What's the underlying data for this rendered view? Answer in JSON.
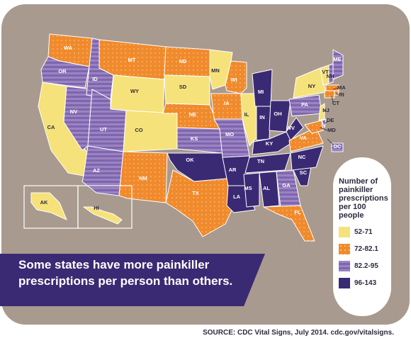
{
  "banner": {
    "line1": "Some states have more painkiller",
    "line2": "prescriptions per person than others."
  },
  "legend": {
    "title_lines": [
      "Number of",
      "painkiller",
      "prescriptions",
      "per 100 people"
    ],
    "items": [
      {
        "label": "52-71",
        "color": "#f6e27a",
        "pattern": "solid"
      },
      {
        "label": "72-82.1",
        "color": "#f08a2c",
        "pattern": "dots"
      },
      {
        "label": "82.2-95",
        "color": "#9b83c4",
        "pattern": "stripes"
      },
      {
        "label": "96-143",
        "color": "#3a2a73",
        "pattern": "solid"
      }
    ]
  },
  "source": "SOURCE: CDC Vital Signs, July 2014. cdc.gov/vitalsigns.",
  "states": [
    {
      "abbr": "WA",
      "class": 1
    },
    {
      "abbr": "OR",
      "class": 2
    },
    {
      "abbr": "CA",
      "class": 0
    },
    {
      "abbr": "NV",
      "class": 2
    },
    {
      "abbr": "ID",
      "class": 2
    },
    {
      "abbr": "MT",
      "class": 1
    },
    {
      "abbr": "WY",
      "class": 0
    },
    {
      "abbr": "UT",
      "class": 2
    },
    {
      "abbr": "AZ",
      "class": 2
    },
    {
      "abbr": "CO",
      "class": 0
    },
    {
      "abbr": "NM",
      "class": 1
    },
    {
      "abbr": "ND",
      "class": 1
    },
    {
      "abbr": "SD",
      "class": 0
    },
    {
      "abbr": "NE",
      "class": 1
    },
    {
      "abbr": "KS",
      "class": 2
    },
    {
      "abbr": "OK",
      "class": 3
    },
    {
      "abbr": "TX",
      "class": 1
    },
    {
      "abbr": "MN",
      "class": 0
    },
    {
      "abbr": "IA",
      "class": 1
    },
    {
      "abbr": "MO",
      "class": 2
    },
    {
      "abbr": "AR",
      "class": 3
    },
    {
      "abbr": "LA",
      "class": 3
    },
    {
      "abbr": "WI",
      "class": 1
    },
    {
      "abbr": "IL",
      "class": 0
    },
    {
      "abbr": "MI",
      "class": 3
    },
    {
      "abbr": "IN",
      "class": 3
    },
    {
      "abbr": "OH",
      "class": 3
    },
    {
      "abbr": "KY",
      "class": 3
    },
    {
      "abbr": "TN",
      "class": 3
    },
    {
      "abbr": "MS",
      "class": 3
    },
    {
      "abbr": "AL",
      "class": 3
    },
    {
      "abbr": "GA",
      "class": 2
    },
    {
      "abbr": "FL",
      "class": 1
    },
    {
      "abbr": "SC",
      "class": 3
    },
    {
      "abbr": "NC",
      "class": 3
    },
    {
      "abbr": "VA",
      "class": 1
    },
    {
      "abbr": "WV",
      "class": 3
    },
    {
      "abbr": "PA",
      "class": 2
    },
    {
      "abbr": "NY",
      "class": 0
    },
    {
      "abbr": "VT",
      "class": 0
    },
    {
      "abbr": "ME",
      "class": 2
    },
    {
      "abbr": "NH",
      "class": 2
    },
    {
      "abbr": "MA",
      "class": 1
    },
    {
      "abbr": "RI",
      "class": 1
    },
    {
      "abbr": "CT",
      "class": 1
    },
    {
      "abbr": "NJ",
      "class": 0
    },
    {
      "abbr": "DE",
      "class": 2
    },
    {
      "abbr": "MD",
      "class": 1
    },
    {
      "abbr": "DC",
      "class": 2
    },
    {
      "abbr": "AK",
      "class": 0
    },
    {
      "abbr": "HI",
      "class": 0
    }
  ]
}
